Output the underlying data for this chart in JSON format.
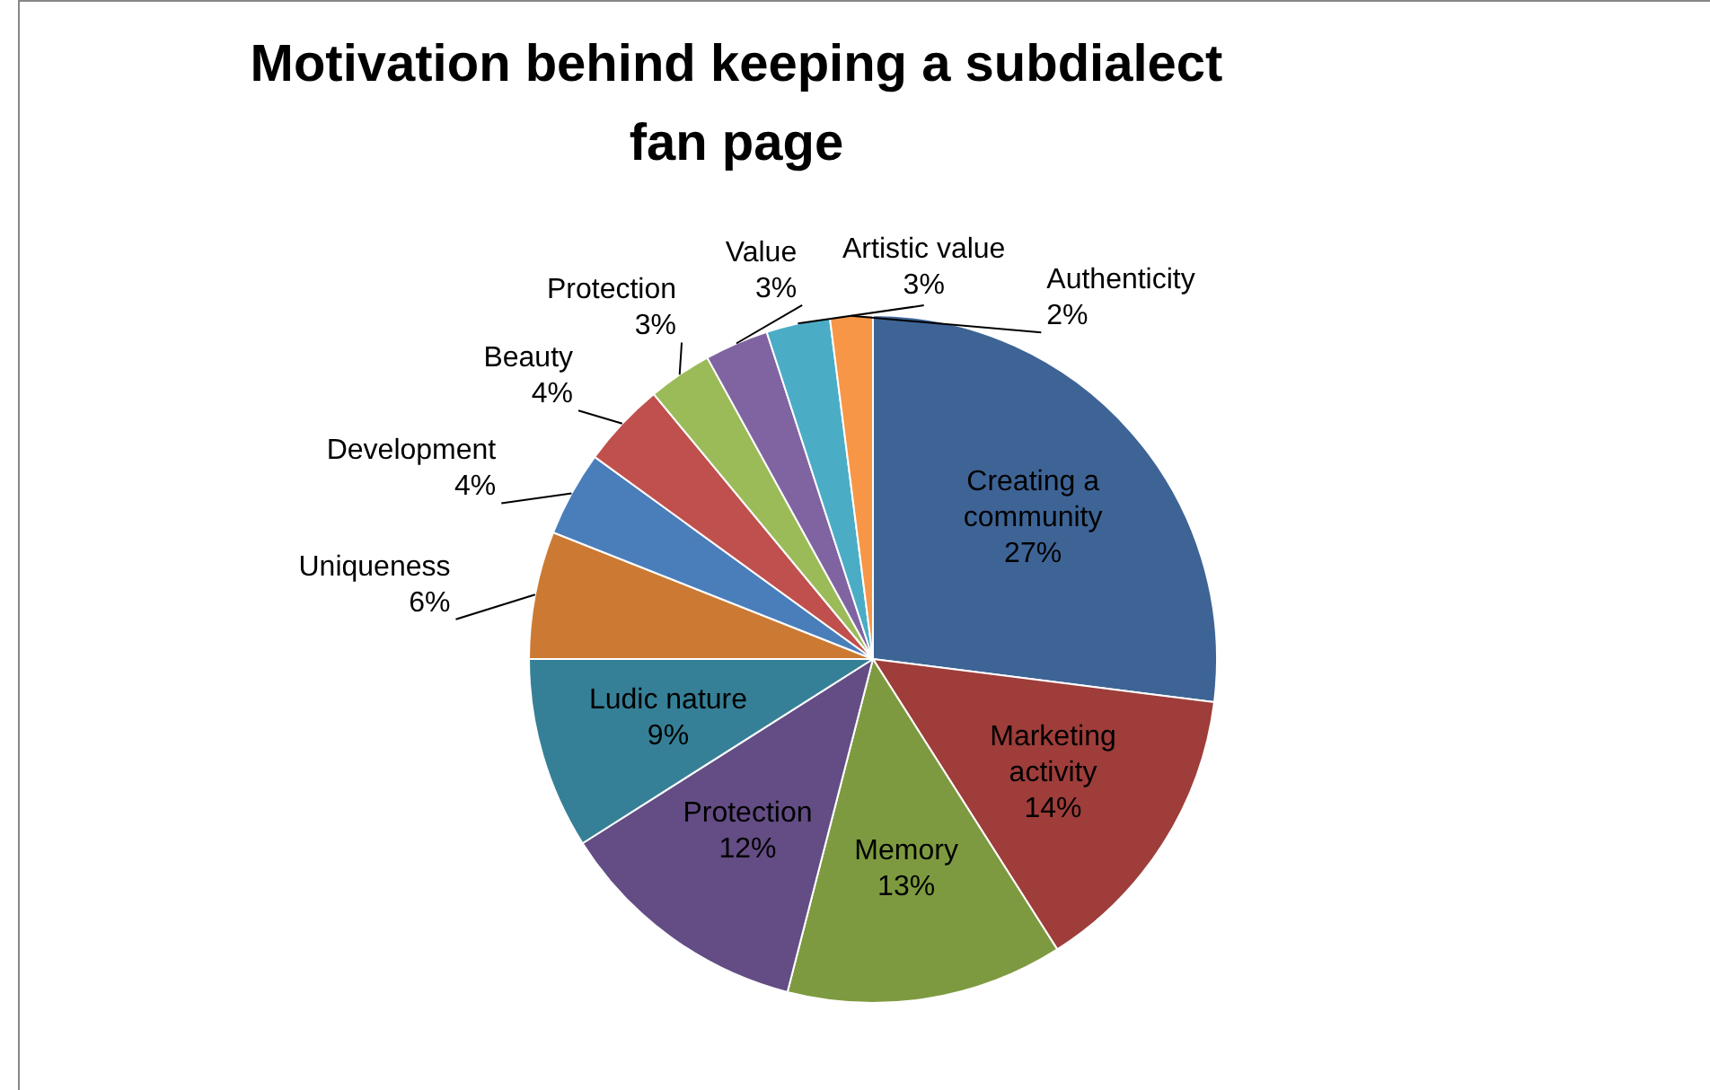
{
  "chart_data": {
    "type": "pie",
    "title": "Motivation behind keeping a subdialect fan page",
    "categories": [
      "Creating a community",
      "Marketing activity",
      "Memory",
      "Protection",
      "Ludic nature",
      "Uniqueness",
      "Development",
      "Beauty",
      "Protection",
      "Value",
      "Artistic value",
      "Authenticity"
    ],
    "values": [
      27,
      14,
      13,
      12,
      9,
      6,
      4,
      4,
      3,
      3,
      3,
      2
    ],
    "colors": [
      "#3e6496",
      "#9e3d3a",
      "#7e9a40",
      "#634d84",
      "#368097",
      "#cc7a33",
      "#4a7ebb",
      "#c0504d",
      "#9bbb59",
      "#8064a2",
      "#4bacc6",
      "#f79646"
    ],
    "value_labels": [
      "27%",
      "14%",
      "13%",
      "12%",
      "9%",
      "6%",
      "4%",
      "4%",
      "3%",
      "3%",
      "3%",
      "2%"
    ]
  }
}
